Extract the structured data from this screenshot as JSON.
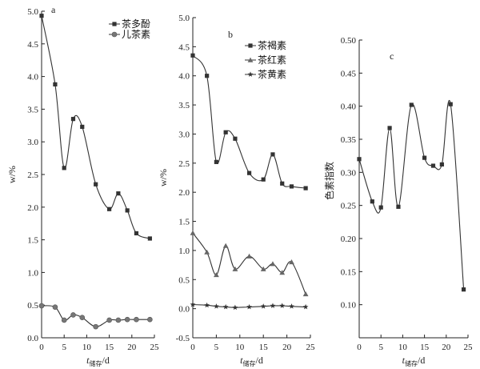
{
  "chart_data": [
    {
      "type": "line",
      "panel_label": "a",
      "x_label": {
        "main": "t",
        "sub": "储存",
        "unit": "/d"
      },
      "y_label": "w/%",
      "xlim": [
        0,
        25
      ],
      "ylim": [
        0,
        5
      ],
      "x_ticks": [
        0,
        5,
        10,
        15,
        20,
        25
      ],
      "y_ticks": [
        0.0,
        0.5,
        1.0,
        1.5,
        2.0,
        2.5,
        3.0,
        3.5,
        4.0,
        4.5,
        5.0
      ],
      "legend_position": "top-right",
      "series": [
        {
          "name": "茶多酚",
          "marker": "square",
          "x": [
            0,
            3,
            5,
            7,
            9,
            12,
            15,
            17,
            19,
            21,
            24
          ],
          "y": [
            4.93,
            3.88,
            2.6,
            3.35,
            3.23,
            2.35,
            1.97,
            2.21,
            1.95,
            1.6,
            1.52
          ]
        },
        {
          "name": "儿茶素",
          "marker": "circle",
          "x": [
            0,
            3,
            5,
            7,
            9,
            12,
            15,
            17,
            19,
            21,
            24
          ],
          "y": [
            0.49,
            0.47,
            0.27,
            0.35,
            0.31,
            0.17,
            0.27,
            0.27,
            0.28,
            0.28,
            0.28
          ]
        }
      ]
    },
    {
      "type": "line",
      "panel_label": "b",
      "x_label": {
        "main": "t",
        "sub": "储存",
        "unit": "/d"
      },
      "y_label": "w/%",
      "xlim": [
        0,
        25
      ],
      "ylim": [
        -0.5,
        5
      ],
      "x_ticks": [
        0,
        5,
        10,
        15,
        20,
        25
      ],
      "y_ticks": [
        -0.5,
        0.0,
        0.5,
        1.0,
        1.5,
        2.0,
        2.5,
        3.0,
        3.5,
        4.0,
        4.5,
        5.0
      ],
      "legend_position": "top-right",
      "series": [
        {
          "name": "茶褐素",
          "marker": "square",
          "x": [
            0,
            3,
            5,
            7,
            9,
            12,
            15,
            17,
            19,
            21,
            24
          ],
          "y": [
            4.35,
            4.0,
            2.52,
            3.03,
            2.92,
            2.33,
            2.22,
            2.65,
            2.15,
            2.1,
            2.07
          ]
        },
        {
          "name": "茶红素",
          "marker": "triangle",
          "x": [
            0,
            3,
            5,
            7,
            9,
            12,
            15,
            17,
            19,
            21,
            24
          ],
          "y": [
            1.3,
            0.97,
            0.58,
            1.08,
            0.68,
            0.9,
            0.68,
            0.77,
            0.62,
            0.8,
            0.25
          ]
        },
        {
          "name": "茶黄素",
          "marker": "star",
          "x": [
            0,
            3,
            5,
            7,
            9,
            12,
            15,
            17,
            19,
            21,
            24
          ],
          "y": [
            0.07,
            0.06,
            0.04,
            0.03,
            0.02,
            0.03,
            0.04,
            0.05,
            0.05,
            0.04,
            0.03
          ]
        }
      ]
    },
    {
      "type": "line",
      "panel_label": "c",
      "x_label": {
        "main": "t",
        "sub": "储存",
        "unit": "/d"
      },
      "y_label": "色素指数",
      "xlim": [
        0,
        25
      ],
      "ylim": [
        0.05,
        0.5
      ],
      "x_ticks": [
        0,
        5,
        10,
        15,
        20,
        25
      ],
      "y_ticks": [
        0.1,
        0.15,
        0.2,
        0.25,
        0.3,
        0.35,
        0.4,
        0.45,
        0.5
      ],
      "series": [
        {
          "marker": "square",
          "x": [
            0,
            3,
            5,
            7,
            9,
            12,
            15,
            17,
            19,
            21,
            24
          ],
          "y": [
            0.32,
            0.256,
            0.247,
            0.367,
            0.248,
            0.402,
            0.322,
            0.31,
            0.312,
            0.403,
            0.123
          ]
        }
      ]
    }
  ],
  "colors": {
    "axis": "#222222",
    "line": "#333333",
    "marker": "#333333"
  }
}
